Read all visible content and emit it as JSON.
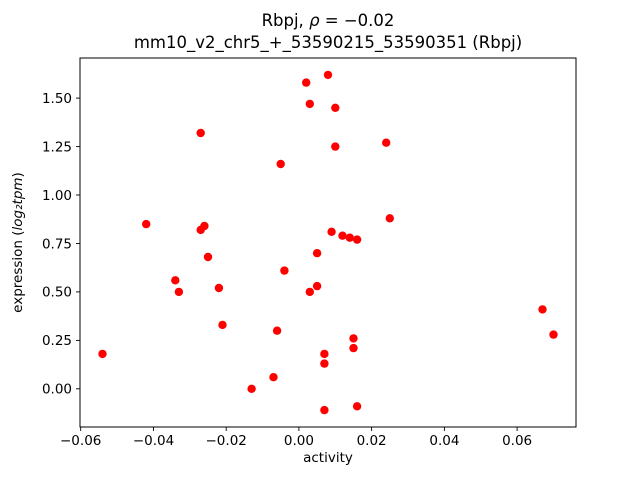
{
  "chart_data": {
    "type": "scatter",
    "title_line1_parts": {
      "prefix": "Rbpj, ",
      "rho": "ρ",
      "suffix": " = −0.02"
    },
    "title_line2": "mm10_v2_chr5_+_53590215_53590351 (Rbpj)",
    "xlabel": "activity",
    "ylabel_parts": {
      "prefix": "expression (",
      "math": "log₂tpm",
      "suffix": ")"
    },
    "xlim": [
      -0.0602,
      0.0762
    ],
    "ylim": [
      -0.197,
      1.707
    ],
    "grid": false,
    "legend": "none",
    "marker_color": "#ff0000",
    "marker_radius": 4.2,
    "xticks": [
      {
        "v": -0.06,
        "label": "−0.06"
      },
      {
        "v": -0.04,
        "label": "−0.04"
      },
      {
        "v": -0.02,
        "label": "−0.02"
      },
      {
        "v": 0.0,
        "label": "0.00"
      },
      {
        "v": 0.02,
        "label": "0.02"
      },
      {
        "v": 0.04,
        "label": "0.04"
      },
      {
        "v": 0.06,
        "label": "0.06"
      }
    ],
    "yticks": [
      {
        "v": 0.0,
        "label": "0.00"
      },
      {
        "v": 0.25,
        "label": "0.25"
      },
      {
        "v": 0.5,
        "label": "0.50"
      },
      {
        "v": 0.75,
        "label": "0.75"
      },
      {
        "v": 1.0,
        "label": "1.00"
      },
      {
        "v": 1.25,
        "label": "1.25"
      },
      {
        "v": 1.5,
        "label": "1.50"
      }
    ],
    "points": [
      [
        -0.054,
        0.18
      ],
      [
        -0.042,
        0.85
      ],
      [
        -0.034,
        0.56
      ],
      [
        -0.033,
        0.5
      ],
      [
        -0.027,
        1.32
      ],
      [
        -0.027,
        0.82
      ],
      [
        -0.026,
        0.84
      ],
      [
        -0.025,
        0.68
      ],
      [
        -0.022,
        0.52
      ],
      [
        -0.021,
        0.33
      ],
      [
        -0.013,
        0.0
      ],
      [
        -0.007,
        0.06
      ],
      [
        -0.006,
        0.3
      ],
      [
        -0.005,
        1.16
      ],
      [
        -0.004,
        0.61
      ],
      [
        0.002,
        1.58
      ],
      [
        0.003,
        1.47
      ],
      [
        0.003,
        0.5
      ],
      [
        0.005,
        0.7
      ],
      [
        0.005,
        0.53
      ],
      [
        0.007,
        0.18
      ],
      [
        0.007,
        0.13
      ],
      [
        0.007,
        -0.11
      ],
      [
        0.008,
        1.62
      ],
      [
        0.009,
        0.81
      ],
      [
        0.01,
        1.45
      ],
      [
        0.01,
        1.25
      ],
      [
        0.012,
        0.79
      ],
      [
        0.014,
        0.78
      ],
      [
        0.015,
        0.26
      ],
      [
        0.015,
        0.21
      ],
      [
        0.016,
        -0.09
      ],
      [
        0.016,
        0.77
      ],
      [
        0.024,
        1.27
      ],
      [
        0.025,
        0.88
      ],
      [
        0.067,
        0.41
      ],
      [
        0.07,
        0.28
      ]
    ]
  }
}
